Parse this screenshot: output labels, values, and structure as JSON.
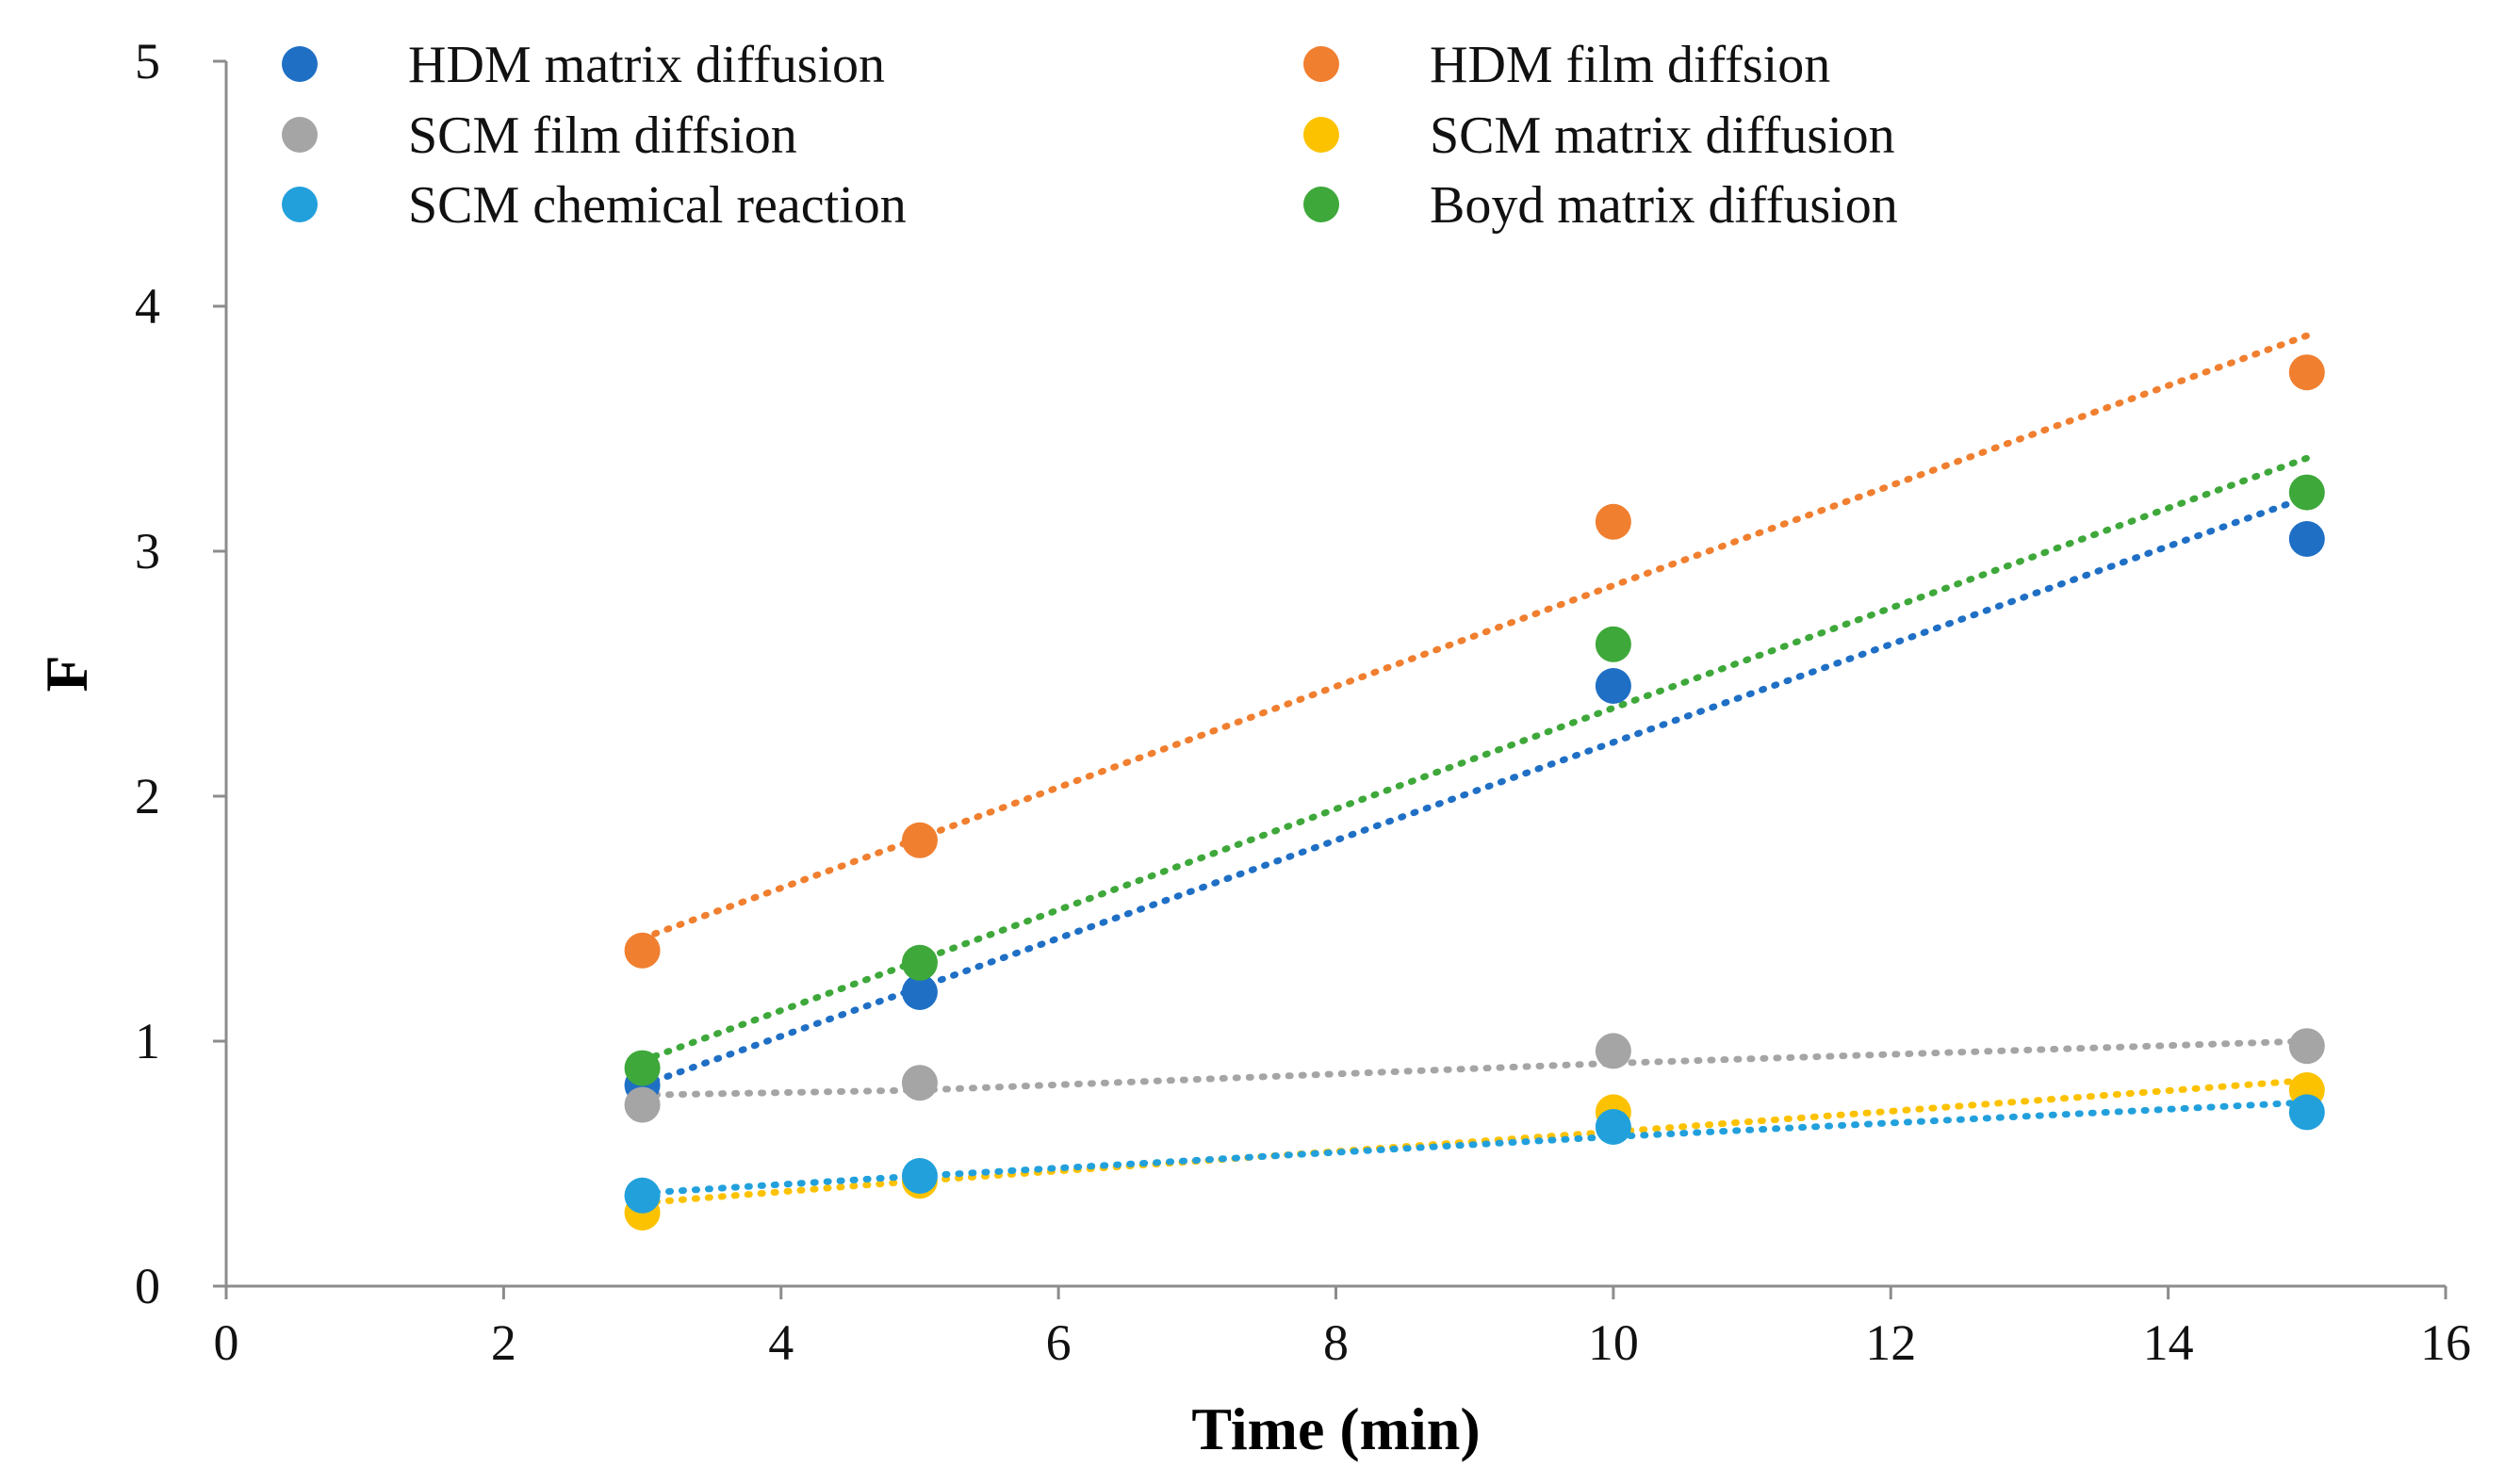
{
  "chart_data": {
    "type": "scatter",
    "title": "",
    "xlabel": "Time (min)",
    "ylabel": "F",
    "xlim": [
      0,
      16
    ],
    "ylim": [
      0,
      5
    ],
    "xticks": [
      0,
      2,
      4,
      6,
      8,
      10,
      12,
      14,
      16
    ],
    "yticks": [
      0,
      1,
      2,
      3,
      4,
      5
    ],
    "grid": false,
    "legend_position": "top",
    "x": [
      3,
      5,
      10,
      15
    ],
    "series": [
      {
        "name": "HDM matrix diffusion",
        "color": "#1f6fc5",
        "values": [
          0.82,
          1.2,
          2.45,
          3.05
        ],
        "trendline": [
          0.82,
          1.22,
          2.22,
          3.22
        ]
      },
      {
        "name": "HDM film diffsion",
        "color": "#f07f30",
        "values": [
          1.37,
          1.82,
          3.12,
          3.73
        ],
        "trendline": [
          1.42,
          1.83,
          2.86,
          3.88
        ]
      },
      {
        "name": "SCM film diffsion",
        "color": "#a5a5a5",
        "values": [
          0.74,
          0.83,
          0.96,
          0.98
        ],
        "trendline": [
          0.78,
          0.8,
          0.91,
          1.0
        ]
      },
      {
        "name": "SCM matrix diffusion",
        "color": "#fcc200",
        "values": [
          0.3,
          0.43,
          0.71,
          0.8
        ],
        "trendline": [
          0.34,
          0.43,
          0.63,
          0.84
        ]
      },
      {
        "name": "SCM chemical reaction",
        "color": "#22a0dc",
        "values": [
          0.37,
          0.45,
          0.65,
          0.71
        ],
        "trendline": [
          0.38,
          0.45,
          0.61,
          0.75
        ]
      },
      {
        "name": "Boyd matrix diffusion",
        "color": "#3ea83a",
        "values": [
          0.89,
          1.32,
          2.62,
          3.24
        ],
        "trendline": [
          0.92,
          1.33,
          2.36,
          3.38
        ]
      }
    ],
    "legend_order": [
      0,
      1,
      2,
      3,
      4,
      5
    ]
  }
}
